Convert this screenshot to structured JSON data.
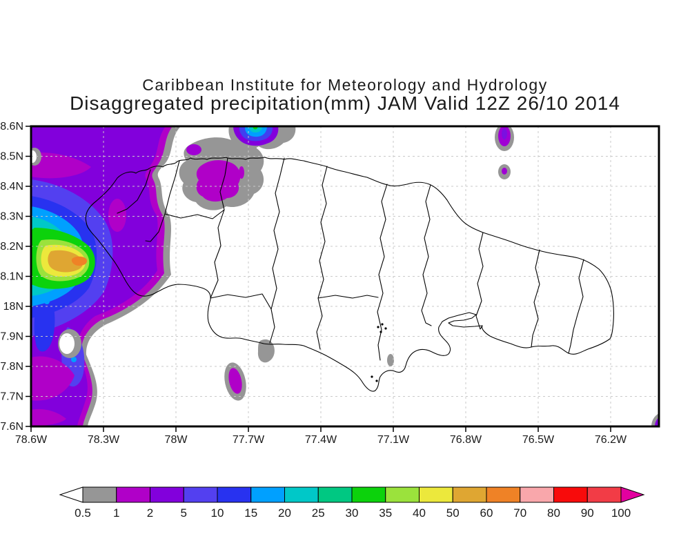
{
  "header": {
    "line1": "Caribbean Institute for Meteorology and Hydrology",
    "line2": "Disaggregated precipitation(mm) JAM Valid 12Z 26/10 2014"
  },
  "map": {
    "lat_labels": [
      "18.6N",
      "18.5N",
      "18.4N",
      "18.3N",
      "18.2N",
      "18.1N",
      "18N",
      "17.9N",
      "17.8N",
      "17.7N",
      "17.6N"
    ],
    "lon_labels": [
      "78.6W",
      "78.3W",
      "78W",
      "77.7W",
      "77.4W",
      "77.1W",
      "76.8W",
      "76.5W",
      "76.2W"
    ]
  },
  "colorbar": {
    "labels": [
      "0.5",
      "1",
      "2",
      "5",
      "10",
      "15",
      "20",
      "25",
      "30",
      "35",
      "40",
      "50",
      "60",
      "70",
      "80",
      "90",
      "100"
    ],
    "colors": [
      "#969696",
      "#b000c8",
      "#8200dc",
      "#5340f0",
      "#2832f0",
      "#00a0ff",
      "#00c8c8",
      "#00c882",
      "#0cd20c",
      "#9be23c",
      "#ece83c",
      "#dfa632",
      "#ef8226",
      "#f9a7ab",
      "#f80b0b",
      "#f23c46"
    ],
    "underflow_color": "#ffffff",
    "overflow_color": "#e3009f"
  },
  "chart_data": {
    "type": "heatmap",
    "title": "Disaggregated precipitation(mm) JAM Valid 12Z 26/10 2014",
    "institution": "Caribbean Institute for Meteorology and Hydrology",
    "region": "Jamaica (JAM)",
    "units": "mm",
    "x_ticks": [
      "78.6W",
      "78.3W",
      "78W",
      "77.7W",
      "77.4W",
      "77.1W",
      "76.8W",
      "76.5W",
      "76.2W"
    ],
    "y_ticks": [
      "18.6N",
      "18.5N",
      "18.4N",
      "18.3N",
      "18.2N",
      "18.1N",
      "18N",
      "17.9N",
      "17.8N",
      "17.7N",
      "17.6N"
    ],
    "legend_levels_mm": [
      0.5,
      1,
      2,
      5,
      10,
      15,
      20,
      25,
      30,
      35,
      40,
      50,
      60,
      70,
      80,
      90,
      100
    ],
    "legend_colors": [
      "#969696",
      "#b000c8",
      "#8200dc",
      "#5340f0",
      "#2832f0",
      "#00a0ff",
      "#00c8c8",
      "#00c882",
      "#0cd20c",
      "#9be23c",
      "#ece83c",
      "#dfa632",
      "#ef8226",
      "#f9a7ab",
      "#f80b0b",
      "#f23c46"
    ],
    "grid": {
      "lat_step_deg": 0.1,
      "lon_step_deg": 0.3,
      "style": "dashed"
    },
    "features": [
      {
        "name": "offshore-west-maximum",
        "approx_location": "78.5W 18.15N",
        "peak_value_mm": "60-70"
      },
      {
        "name": "west-field",
        "approx_location": "west of 78.3W, 17.6N-18.6N",
        "value_mm": "2-5 widespread"
      },
      {
        "name": "montego-bay-cell",
        "approx_location": "77.8W 18.45N",
        "peak_value_mm": "1-2"
      },
      {
        "name": "north-coast-offshore-cell",
        "approx_location": "77.55W 18.6N",
        "peak_value_mm": "25-30"
      },
      {
        "name": "northeast-offshore-cell",
        "approx_location": "76.65W 18.55N",
        "peak_value_mm": "2-5"
      },
      {
        "name": "south-offshore-cell",
        "approx_location": "77.7W 17.73N",
        "peak_value_mm": "1-2"
      },
      {
        "name": "southeast-corner-sliver",
        "approx_location": "76.05W 17.62N",
        "peak_value_mm": "2-5"
      }
    ]
  }
}
